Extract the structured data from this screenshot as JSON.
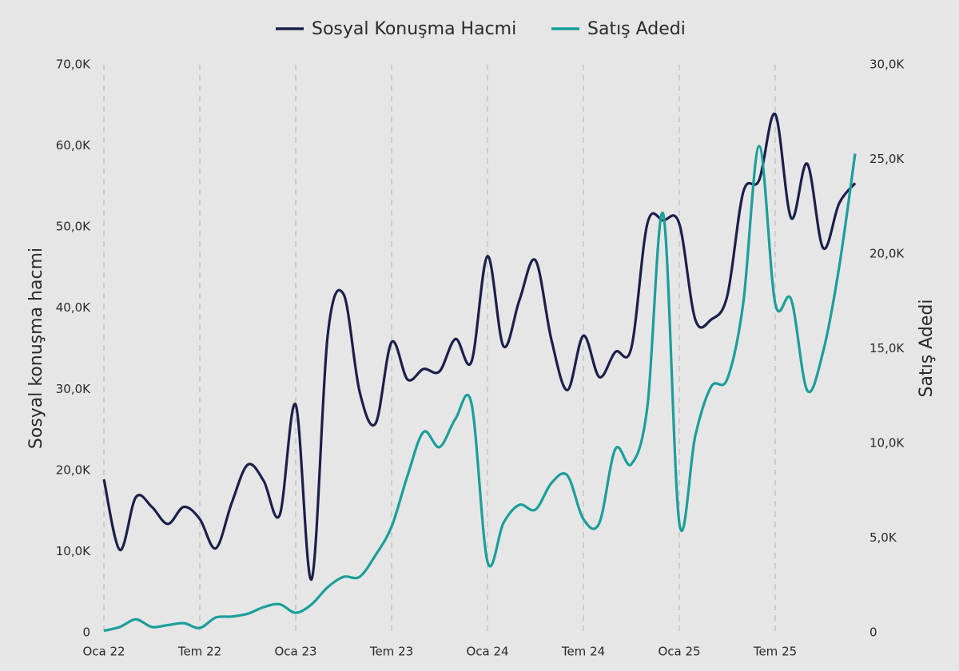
{
  "chart_data": {
    "type": "line",
    "categories": [
      "Oca 22",
      null,
      null,
      null,
      null,
      null,
      "Tem 22",
      null,
      null,
      null,
      null,
      null,
      "Oca 23",
      null,
      null,
      null,
      null,
      null,
      "Tem 23",
      null,
      null,
      null,
      null,
      null,
      "Oca 24",
      null,
      null,
      null,
      null,
      null,
      "Tem 24",
      null,
      null,
      null,
      null,
      null,
      "Oca 25",
      null,
      null,
      null,
      null,
      null,
      "Tem 25",
      null,
      null,
      null,
      null,
      null
    ],
    "series": [
      {
        "name": "Sosyal Konuşma Hacmi",
        "color": "#1b1f4b",
        "values": [
          18900,
          10200,
          16700,
          15500,
          13400,
          15500,
          14000,
          10400,
          16000,
          20700,
          18700,
          14500,
          28100,
          6600,
          36600,
          41700,
          29700,
          25800,
          35800,
          31200,
          32500,
          32200,
          36200,
          33400,
          46400,
          35300,
          41000,
          45900,
          36100,
          29900,
          36600,
          31500,
          34600,
          35100,
          50400,
          50800,
          50400,
          38600,
          38600,
          41500,
          54300,
          55800,
          63900,
          51100,
          57800,
          47400,
          52900,
          55400
        ]
      },
      {
        "name": "Satış Adedi",
        "color": "#1a9e9a",
        "axis": "y2",
        "values": [
          100,
          300,
          700,
          300,
          400,
          500,
          250,
          800,
          850,
          1000,
          1350,
          1500,
          1050,
          1500,
          2400,
          2950,
          2950,
          4100,
          5600,
          8300,
          10600,
          9800,
          11300,
          12100,
          3750,
          5800,
          6750,
          6500,
          7900,
          8300,
          6000,
          5800,
          9700,
          8900,
          11900,
          22100,
          5800,
          10400,
          13000,
          13400,
          17400,
          25700,
          17400,
          17600,
          12800,
          14850,
          19300,
          25300
        ]
      }
    ],
    "ylabel": "Sosyal konuşma hacmi",
    "y2label": "Satış Adedi",
    "ylim": [
      0,
      70000
    ],
    "yticks": [
      0,
      {
        "value": 10000,
        "label": "10,0K"
      },
      {
        "value": 20000,
        "label": "20,0K"
      },
      {
        "value": 30000,
        "label": "30,0K"
      },
      {
        "value": 40000,
        "label": "40,0K"
      },
      {
        "value": 50000,
        "label": "50,0K"
      },
      {
        "value": 60000,
        "label": "60,0K"
      },
      {
        "value": 70000,
        "label": "70,0K"
      }
    ],
    "y2lim": [
      0,
      30000
    ],
    "y2ticks": [
      0,
      {
        "value": 5000,
        "label": "5,0K"
      },
      {
        "value": 10000,
        "label": "10,0K"
      },
      {
        "value": 15000,
        "label": "15,0K"
      },
      {
        "value": 20000,
        "label": "20,0K"
      },
      {
        "value": 25000,
        "label": "25,0K"
      },
      {
        "value": 30000,
        "label": "30,0K"
      }
    ],
    "xgrid": true,
    "legend": "top"
  }
}
